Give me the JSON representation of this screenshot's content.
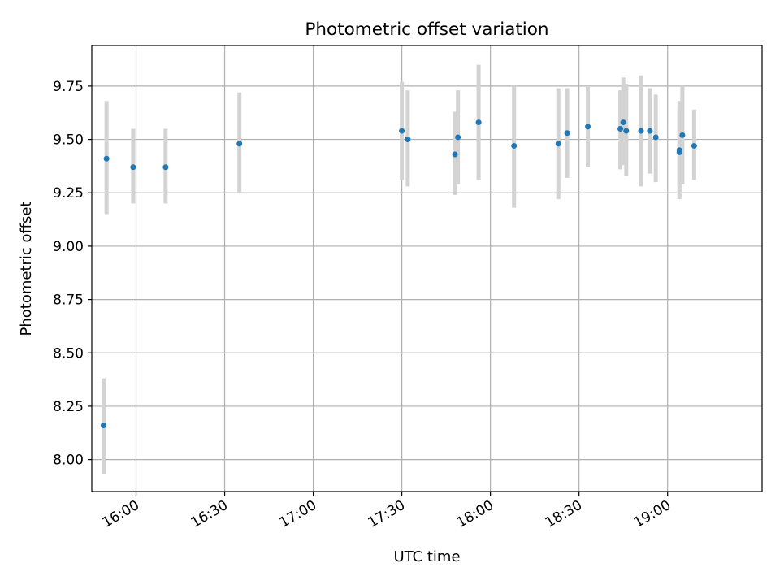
{
  "chart_data": {
    "type": "scatter",
    "title": "Photometric offset variation",
    "xlabel": "UTC time",
    "ylabel": "Photometric offset",
    "x_unit": "UTC time (HH:MM)",
    "xlim": [
      "15:45",
      "19:32"
    ],
    "ylim": [
      7.85,
      9.94
    ],
    "x_ticks": [
      "16:00",
      "16:30",
      "17:00",
      "17:30",
      "18:00",
      "18:30",
      "19:00"
    ],
    "y_ticks": [
      8.0,
      8.25,
      8.5,
      8.75,
      9.0,
      9.25,
      9.5,
      9.75
    ],
    "grid": true,
    "legend": "none",
    "colors": {
      "point": "#1f77b4",
      "errorbar": "#d3d3d3",
      "grid": "#b0b0b0"
    },
    "series": [
      {
        "points": [
          {
            "x": "15:49",
            "y": 8.16,
            "err_low": 7.93,
            "err_high": 8.38
          },
          {
            "x": "15:50",
            "y": 9.41,
            "err_low": 9.15,
            "err_high": 9.68
          },
          {
            "x": "15:59",
            "y": 9.37,
            "err_low": 9.2,
            "err_high": 9.55
          },
          {
            "x": "16:10",
            "y": 9.37,
            "err_low": 9.2,
            "err_high": 9.55
          },
          {
            "x": "16:35",
            "y": 9.48,
            "err_low": 9.25,
            "err_high": 9.72
          },
          {
            "x": "17:30",
            "y": 9.54,
            "err_low": 9.31,
            "err_high": 9.77
          },
          {
            "x": "17:32",
            "y": 9.5,
            "err_low": 9.28,
            "err_high": 9.73
          },
          {
            "x": "17:48",
            "y": 9.43,
            "err_low": 9.24,
            "err_high": 9.63
          },
          {
            "x": "17:49",
            "y": 9.51,
            "err_low": 9.29,
            "err_high": 9.73
          },
          {
            "x": "17:56",
            "y": 9.58,
            "err_low": 9.31,
            "err_high": 9.85
          },
          {
            "x": "18:08",
            "y": 9.47,
            "err_low": 9.18,
            "err_high": 9.75
          },
          {
            "x": "18:23",
            "y": 9.48,
            "err_low": 9.22,
            "err_high": 9.74
          },
          {
            "x": "18:26",
            "y": 9.53,
            "err_low": 9.32,
            "err_high": 9.74
          },
          {
            "x": "18:33",
            "y": 9.56,
            "err_low": 9.37,
            "err_high": 9.75
          },
          {
            "x": "18:44",
            "y": 9.55,
            "err_low": 9.36,
            "err_high": 9.73
          },
          {
            "x": "18:45",
            "y": 9.58,
            "err_low": 9.38,
            "err_high": 9.79
          },
          {
            "x": "18:46",
            "y": 9.54,
            "err_low": 9.33,
            "err_high": 9.76
          },
          {
            "x": "18:51",
            "y": 9.54,
            "err_low": 9.28,
            "err_high": 9.8
          },
          {
            "x": "18:54",
            "y": 9.54,
            "err_low": 9.34,
            "err_high": 9.74
          },
          {
            "x": "18:56",
            "y": 9.51,
            "err_low": 9.3,
            "err_high": 9.71
          },
          {
            "x": "19:04",
            "y": 9.44,
            "err_low": 9.23,
            "err_high": 9.65
          },
          {
            "x": "19:04",
            "y": 9.45,
            "err_low": 9.22,
            "err_high": 9.68
          },
          {
            "x": "19:05",
            "y": 9.52,
            "err_low": 9.29,
            "err_high": 9.75
          },
          {
            "x": "19:09",
            "y": 9.47,
            "err_low": 9.31,
            "err_high": 9.64
          }
        ]
      }
    ]
  }
}
